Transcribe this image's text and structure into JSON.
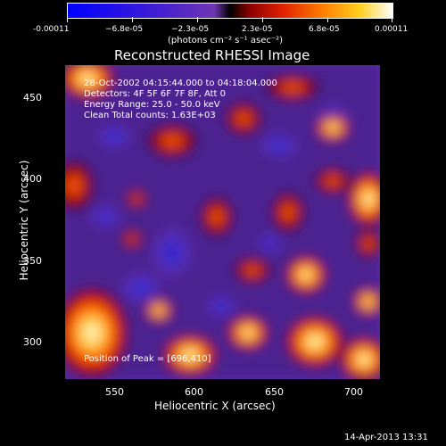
{
  "colorbar": {
    "ticks": [
      "-0.00011",
      "−6.8e-05",
      "−2.3e-05",
      "2.3e-05",
      "6.8e-05",
      "0.00011"
    ],
    "unit": "(photons cm⁻² s⁻¹ asec⁻²)"
  },
  "plot": {
    "title": "Reconstructed RHESSI Image",
    "ylabel": "Heliocentric Y (arcsec)",
    "xlabel": "Heliocentric X (arcsec)",
    "y_ticks": [
      "450",
      "400",
      "350",
      "300"
    ],
    "x_ticks": [
      "550",
      "600",
      "650",
      "700"
    ],
    "info": {
      "time": "28-Oct-2002 04:15:44.000 to 04:18:04.000",
      "detectors": "Detectors: 4F 5F 6F 7F 8F, Att 0",
      "energy": "Energy Range: 25.0 - 50.0 keV",
      "clean": "Clean    Total counts: 1.63E+03",
      "peak": "Position of Peak = [696,410]"
    }
  },
  "footer": {
    "timestamp": "14-Apr-2013 13:31"
  },
  "colors": {
    "background": "#000000",
    "low": "#0000ff",
    "mid": "#7e3fbf",
    "high": "#ffffff"
  }
}
